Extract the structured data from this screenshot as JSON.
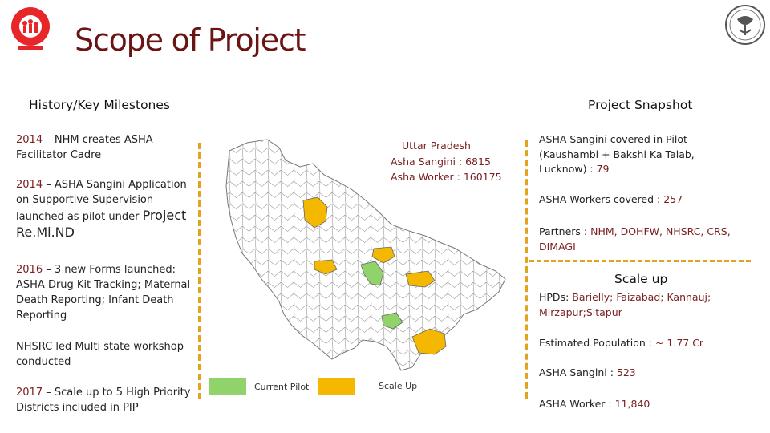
{
  "title": "Scope of Project",
  "left_header": "History/Key Milestones",
  "right_header": "Project Snapshot",
  "milestones": [
    {
      "year": "2014",
      "text": " – NHM creates ASHA Facilitator Cadre"
    },
    {
      "year": "2014",
      "text": " – ASHA Sangini Application on Supportive Supervision launched as pilot under ",
      "project": "Project",
      "remind": "Re.Mi.ND"
    },
    {
      "year": "2016",
      "text": " – 3 new Forms launched: ASHA Drug Kit Tracking; Maternal Death Reporting; Infant Death Reporting"
    },
    {
      "text": "NHSRC led Multi state workshop conducted"
    },
    {
      "year": "2017",
      "text": " – Scale up to 5 High Priority Districts included in PIP"
    }
  ],
  "map_label": {
    "state": "Uttar Pradesh",
    "sangini": "Asha Sangini : 6815",
    "worker": "Asha Worker : 160175"
  },
  "legend": {
    "current_pilot": "Current Pilot",
    "scale_up": "Scale Up",
    "current_color": "#8fd36a",
    "scale_color": "#f5b800"
  },
  "snapshot": {
    "covered_label": "ASHA Sangini covered in Pilot (Kaushambi + Bakshi Ka Talab, Lucknow) : ",
    "covered_value": "79",
    "workers_label": "ASHA Workers covered : ",
    "workers_value": "257",
    "partners_label": "Partners : ",
    "partners_value": "NHM, DOHFW, NHSRC, CRS, DIMAGI"
  },
  "scaleup": {
    "title": "Scale up",
    "hpds_label": "HPDs: ",
    "hpds_value": "Barielly; Faizabad; Kannauj; Mirzapur;Sitapur",
    "pop_label": "Estimated Population : ",
    "pop_value": "~ 1.77 Cr",
    "sangini_label": "ASHA Sangini : ",
    "sangini_value": "523",
    "worker_label": "ASHA Worker : ",
    "worker_value": "11,840"
  },
  "colors": {
    "accent": "#7a2020",
    "dash": "#e5a21e",
    "title": "#6b1414"
  },
  "icons": {
    "left_logo": "nhm-logo-icon",
    "right_logo": "up-emblem-icon"
  }
}
